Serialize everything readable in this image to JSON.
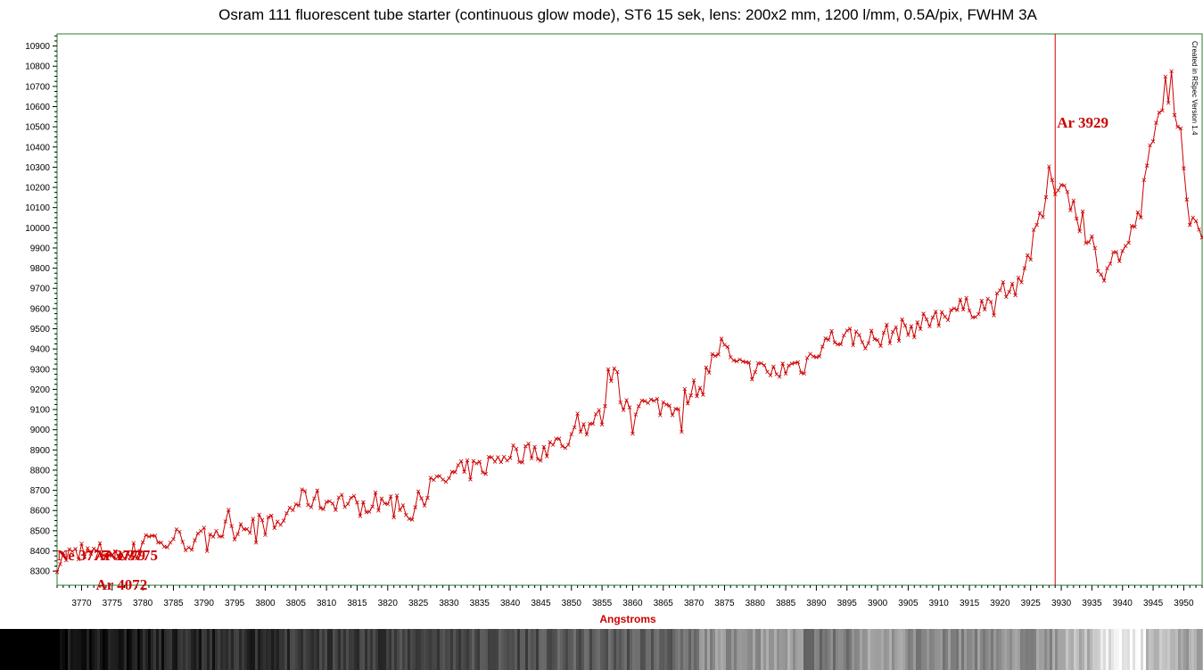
{
  "colors": {
    "series": "#cc0000",
    "frame": "#2e7d32",
    "annotation": "#cc0000",
    "axis_label": "#cc0000"
  },
  "watermark": "Created in RSpec Version 1.4",
  "chart_data": {
    "type": "line",
    "title": "Osram 111 fluorescent tube starter (continuous glow mode), ST6 15 sek,  lens: 200x2 mm, 1200 l/mm, 0.5A/pix, FWHM 3A",
    "xlabel": "Angstroms",
    "ylabel": "",
    "xlim": [
      3766,
      3953
    ],
    "ylim": [
      8230,
      10960
    ],
    "grid": false,
    "marker": "x",
    "x_ticks": [
      3770,
      3775,
      3780,
      3785,
      3790,
      3795,
      3800,
      3805,
      3810,
      3815,
      3820,
      3825,
      3830,
      3835,
      3840,
      3845,
      3850,
      3855,
      3860,
      3865,
      3870,
      3875,
      3880,
      3885,
      3890,
      3895,
      3900,
      3905,
      3910,
      3915,
      3920,
      3925,
      3930,
      3935,
      3940,
      3945,
      3950
    ],
    "y_ticks": [
      8300,
      8400,
      8500,
      8600,
      8700,
      8800,
      8900,
      9000,
      9100,
      9200,
      9300,
      9400,
      9500,
      9600,
      9700,
      9800,
      9900,
      10000,
      10100,
      10200,
      10300,
      10400,
      10500,
      10600,
      10700,
      10800,
      10900
    ],
    "anchors": [
      [
        3766,
        8350
      ],
      [
        3768,
        8380
      ],
      [
        3770,
        8370
      ],
      [
        3772,
        8390
      ],
      [
        3775,
        8400
      ],
      [
        3777,
        8370
      ],
      [
        3779,
        8400
      ],
      [
        3780,
        8450
      ],
      [
        3781,
        8500
      ],
      [
        3783,
        8420
      ],
      [
        3785,
        8470
      ],
      [
        3787,
        8450
      ],
      [
        3789,
        8440
      ],
      [
        3791,
        8500
      ],
      [
        3793,
        8500
      ],
      [
        3795,
        8510
      ],
      [
        3797,
        8540
      ],
      [
        3800,
        8530
      ],
      [
        3802,
        8520
      ],
      [
        3805,
        8640
      ],
      [
        3807,
        8660
      ],
      [
        3810,
        8640
      ],
      [
        3812,
        8660
      ],
      [
        3815,
        8620
      ],
      [
        3817,
        8640
      ],
      [
        3820,
        8640
      ],
      [
        3822,
        8640
      ],
      [
        3824,
        8580
      ],
      [
        3826,
        8700
      ],
      [
        3828,
        8730
      ],
      [
        3830,
        8760
      ],
      [
        3832,
        8790
      ],
      [
        3835,
        8810
      ],
      [
        3837,
        8840
      ],
      [
        3840,
        8890
      ],
      [
        3842,
        8880
      ],
      [
        3845,
        8900
      ],
      [
        3847,
        8920
      ],
      [
        3849,
        8940
      ],
      [
        3851,
        8990
      ],
      [
        3853,
        9030
      ],
      [
        3855,
        9060
      ],
      [
        3856,
        9250
      ],
      [
        3857,
        9330
      ],
      [
        3858,
        9160
      ],
      [
        3860,
        9120
      ],
      [
        3862,
        9120
      ],
      [
        3865,
        9120
      ],
      [
        3867,
        9120
      ],
      [
        3869,
        9180
      ],
      [
        3870,
        9200
      ],
      [
        3872,
        9280
      ],
      [
        3874,
        9400
      ],
      [
        3875,
        9420
      ],
      [
        3876,
        9330
      ],
      [
        3878,
        9300
      ],
      [
        3880,
        9300
      ],
      [
        3882,
        9280
      ],
      [
        3884,
        9290
      ],
      [
        3886,
        9320
      ],
      [
        3888,
        9320
      ],
      [
        3890,
        9400
      ],
      [
        3892,
        9450
      ],
      [
        3895,
        9460
      ],
      [
        3897,
        9460
      ],
      [
        3900,
        9440
      ],
      [
        3902,
        9480
      ],
      [
        3905,
        9500
      ],
      [
        3907,
        9520
      ],
      [
        3910,
        9560
      ],
      [
        3912,
        9600
      ],
      [
        3915,
        9600
      ],
      [
        3917,
        9620
      ],
      [
        3919,
        9620
      ],
      [
        3921,
        9660
      ],
      [
        3923,
        9740
      ],
      [
        3924,
        9810
      ],
      [
        3925,
        9880
      ],
      [
        3926,
        9990
      ],
      [
        3927,
        10070
      ],
      [
        3928,
        10250
      ],
      [
        3929,
        10210
      ],
      [
        3930,
        10230
      ],
      [
        3931,
        10180
      ],
      [
        3932,
        10100
      ],
      [
        3933,
        9990
      ],
      [
        3934,
        9900
      ],
      [
        3935,
        9920
      ],
      [
        3936,
        9840
      ],
      [
        3937,
        9780
      ],
      [
        3938,
        9850
      ],
      [
        3939,
        9860
      ],
      [
        3940,
        9880
      ],
      [
        3941,
        9920
      ],
      [
        3942,
        10020
      ],
      [
        3943,
        10080
      ],
      [
        3944,
        10300
      ],
      [
        3945,
        10430
      ],
      [
        3946,
        10550
      ],
      [
        3947,
        10720
      ],
      [
        3948,
        10620
      ],
      [
        3949,
        10460
      ],
      [
        3950,
        10310
      ],
      [
        3951,
        10060
      ],
      [
        3952,
        10070
      ],
      [
        3953,
        9930
      ]
    ],
    "annotations": [
      {
        "label": "Ar 3929",
        "x": 3929
      },
      {
        "label": "Ar 4072",
        "x": 3770
      },
      {
        "label": "Ne 3777",
        "x": 3766
      },
      {
        "label": "Ar 3779",
        "x": 3772
      },
      {
        "label": "Ne 3775",
        "x": 3774
      }
    ]
  }
}
